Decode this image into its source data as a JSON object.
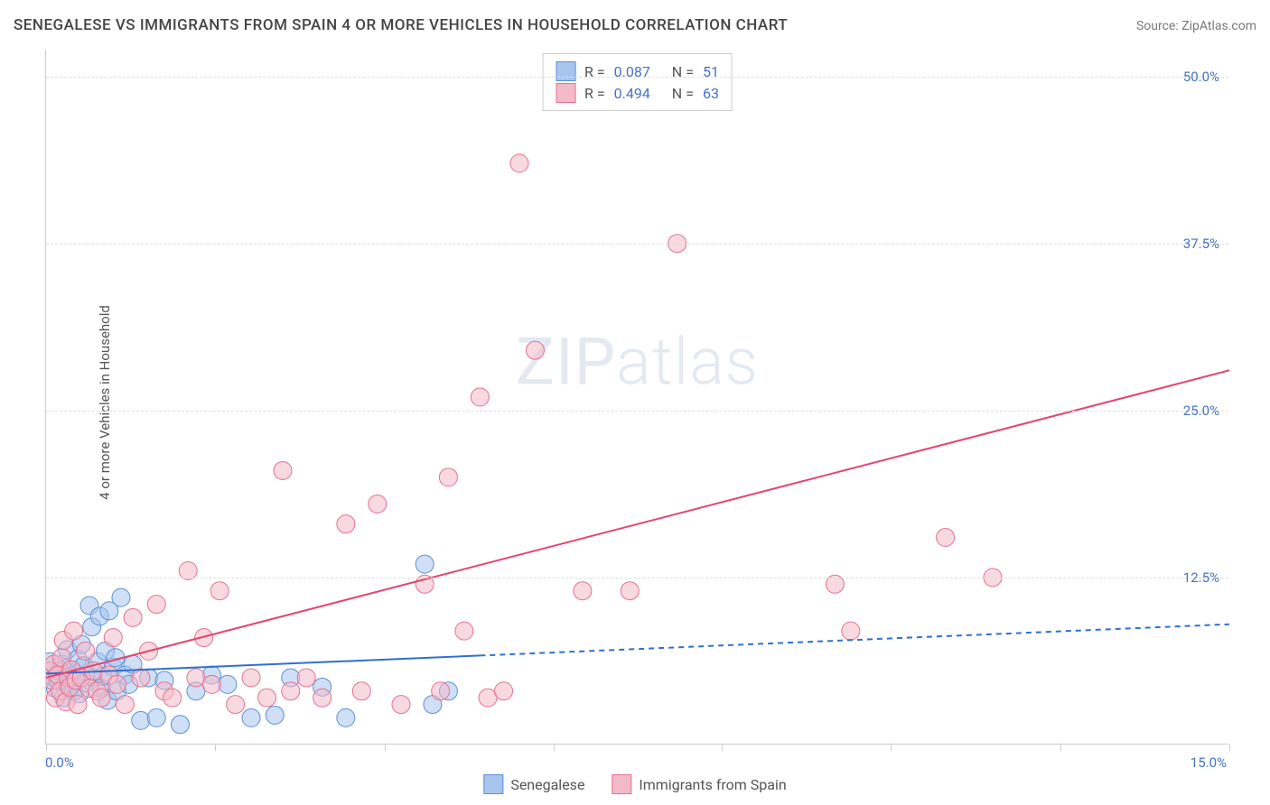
{
  "title": "SENEGALESE VS IMMIGRANTS FROM SPAIN 4 OR MORE VEHICLES IN HOUSEHOLD CORRELATION CHART",
  "source": "Source: ZipAtlas.com",
  "ylabel": "4 or more Vehicles in Household",
  "watermark_a": "ZIP",
  "watermark_b": "atlas",
  "chart": {
    "type": "scatter",
    "xlim": [
      0,
      15
    ],
    "ylim": [
      0,
      52
    ],
    "x_ticks": [
      0,
      2.14,
      4.29,
      6.43,
      8.57,
      10.71,
      12.86,
      15.0
    ],
    "x_tick_labels": {
      "0": "0.0%",
      "15": "15.0%"
    },
    "y_ticks": [
      12.5,
      25.0,
      37.5,
      50.0
    ],
    "y_tick_labels": [
      "12.5%",
      "25.0%",
      "37.5%",
      "50.0%"
    ],
    "grid_color": "#dddddd",
    "background_color": "#ffffff",
    "axis_color": "#cccccc",
    "tick_label_color": "#4472c4",
    "marker_radius": 10,
    "series": [
      {
        "name": "Senegalese",
        "fill": "#a8c5ed",
        "stroke": "#5b8fd6",
        "fill_opacity": 0.55,
        "r_value": "0.087",
        "n_value": "51",
        "trend": {
          "x1": 0,
          "y1": 5.3,
          "x2": 15,
          "y2": 9.0,
          "solid_until_x": 5.5,
          "color": "#2f6fd0",
          "width": 2
        },
        "points": [
          [
            0.05,
            6.2
          ],
          [
            0.1,
            5.0
          ],
          [
            0.12,
            4.2
          ],
          [
            0.15,
            4.8
          ],
          [
            0.18,
            5.5
          ],
          [
            0.2,
            6.0
          ],
          [
            0.22,
            3.5
          ],
          [
            0.25,
            5.7
          ],
          [
            0.27,
            7.1
          ],
          [
            0.3,
            4.5
          ],
          [
            0.32,
            5.0
          ],
          [
            0.35,
            4.0
          ],
          [
            0.38,
            5.3
          ],
          [
            0.4,
            6.4
          ],
          [
            0.42,
            3.8
          ],
          [
            0.45,
            7.5
          ],
          [
            0.48,
            5.9
          ],
          [
            0.5,
            4.6
          ],
          [
            0.55,
            10.4
          ],
          [
            0.58,
            8.8
          ],
          [
            0.6,
            5.0
          ],
          [
            0.65,
            6.2
          ],
          [
            0.68,
            9.6
          ],
          [
            0.7,
            4.2
          ],
          [
            0.72,
            5.1
          ],
          [
            0.75,
            7.0
          ],
          [
            0.78,
            3.3
          ],
          [
            0.8,
            10.0
          ],
          [
            0.85,
            5.8
          ],
          [
            0.88,
            6.5
          ],
          [
            0.9,
            4.0
          ],
          [
            0.95,
            11.0
          ],
          [
            1.0,
            5.2
          ],
          [
            1.05,
            4.5
          ],
          [
            1.1,
            6.0
          ],
          [
            1.2,
            1.8
          ],
          [
            1.3,
            5.0
          ],
          [
            1.4,
            2.0
          ],
          [
            1.5,
            4.8
          ],
          [
            1.7,
            1.5
          ],
          [
            1.9,
            4.0
          ],
          [
            2.1,
            5.2
          ],
          [
            2.3,
            4.5
          ],
          [
            2.6,
            2.0
          ],
          [
            2.9,
            2.2
          ],
          [
            3.1,
            5.0
          ],
          [
            3.5,
            4.3
          ],
          [
            3.8,
            2.0
          ],
          [
            4.8,
            13.5
          ],
          [
            4.9,
            3.0
          ],
          [
            5.1,
            4.0
          ]
        ]
      },
      {
        "name": "Immigrants from Spain",
        "fill": "#f4b9c8",
        "stroke": "#e4718f",
        "fill_opacity": 0.55,
        "r_value": "0.494",
        "n_value": "63",
        "trend": {
          "x1": 0,
          "y1": 5.0,
          "x2": 15,
          "y2": 28.0,
          "solid_until_x": 15,
          "color": "#e4456f",
          "width": 2
        },
        "points": [
          [
            0.05,
            5.5
          ],
          [
            0.08,
            4.8
          ],
          [
            0.1,
            6.0
          ],
          [
            0.12,
            3.5
          ],
          [
            0.15,
            5.2
          ],
          [
            0.18,
            4.0
          ],
          [
            0.2,
            6.5
          ],
          [
            0.22,
            7.8
          ],
          [
            0.25,
            3.2
          ],
          [
            0.28,
            5.0
          ],
          [
            0.3,
            4.3
          ],
          [
            0.32,
            5.6
          ],
          [
            0.35,
            8.5
          ],
          [
            0.38,
            4.8
          ],
          [
            0.4,
            3.0
          ],
          [
            0.45,
            5.0
          ],
          [
            0.5,
            7.0
          ],
          [
            0.55,
            4.2
          ],
          [
            0.6,
            5.5
          ],
          [
            0.65,
            4.0
          ],
          [
            0.7,
            3.5
          ],
          [
            0.8,
            5.2
          ],
          [
            0.85,
            8.0
          ],
          [
            0.9,
            4.5
          ],
          [
            1.0,
            3.0
          ],
          [
            1.1,
            9.5
          ],
          [
            1.2,
            5.0
          ],
          [
            1.3,
            7.0
          ],
          [
            1.4,
            10.5
          ],
          [
            1.5,
            4.0
          ],
          [
            1.6,
            3.5
          ],
          [
            1.8,
            13.0
          ],
          [
            1.9,
            5.0
          ],
          [
            2.0,
            8.0
          ],
          [
            2.1,
            4.5
          ],
          [
            2.2,
            11.5
          ],
          [
            2.4,
            3.0
          ],
          [
            2.6,
            5.0
          ],
          [
            2.8,
            3.5
          ],
          [
            3.0,
            20.5
          ],
          [
            3.1,
            4.0
          ],
          [
            3.3,
            5.0
          ],
          [
            3.5,
            3.5
          ],
          [
            3.8,
            16.5
          ],
          [
            4.0,
            4.0
          ],
          [
            4.2,
            18.0
          ],
          [
            4.5,
            3.0
          ],
          [
            4.8,
            12.0
          ],
          [
            5.0,
            4.0
          ],
          [
            5.1,
            20.0
          ],
          [
            5.3,
            8.5
          ],
          [
            5.5,
            26.0
          ],
          [
            5.6,
            3.5
          ],
          [
            5.8,
            4.0
          ],
          [
            6.0,
            43.5
          ],
          [
            6.2,
            29.5
          ],
          [
            6.8,
            11.5
          ],
          [
            7.4,
            11.5
          ],
          [
            8.0,
            37.5
          ],
          [
            10.0,
            12.0
          ],
          [
            10.2,
            8.5
          ],
          [
            11.4,
            15.5
          ],
          [
            12.0,
            12.5
          ]
        ]
      }
    ]
  },
  "stats_labels": {
    "r": "R =",
    "n": "N ="
  },
  "legend": {
    "series1": "Senegalese",
    "series2": "Immigrants from Spain"
  }
}
